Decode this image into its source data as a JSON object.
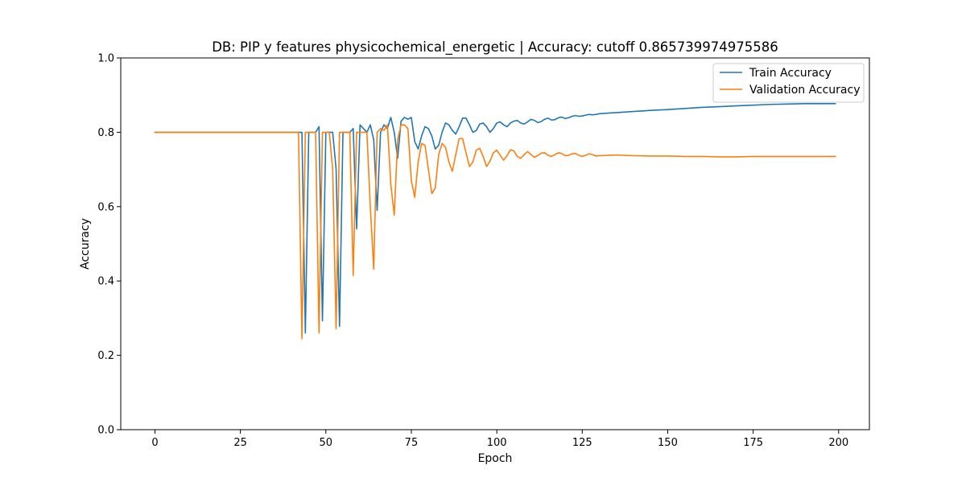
{
  "chart_data": {
    "type": "line",
    "title": "DB: PIP y features physicochemical_energetic | Accuracy: cutoff 0.865739974975586",
    "xlabel": "Epoch",
    "ylabel": "Accuracy",
    "xlim": [
      -10,
      209
    ],
    "ylim": [
      0.0,
      1.0
    ],
    "xticks": [
      0,
      25,
      50,
      75,
      100,
      125,
      150,
      175,
      200
    ],
    "xtick_labels": [
      "0",
      "25",
      "50",
      "75",
      "100",
      "125",
      "150",
      "175",
      "200"
    ],
    "yticks": [
      0.0,
      0.2,
      0.4,
      0.6,
      0.8,
      1.0
    ],
    "ytick_labels": [
      "0.0",
      "0.2",
      "0.4",
      "0.6",
      "0.8",
      "1.0"
    ],
    "grid": false,
    "legend_position": "top-right",
    "series": [
      {
        "name": "Train Accuracy",
        "color": "#1f77b4",
        "x": [
          0,
          5,
          10,
          15,
          20,
          25,
          30,
          35,
          40,
          41,
          42,
          43,
          44,
          45,
          46,
          47,
          48,
          49,
          50,
          51,
          52,
          53,
          54,
          55,
          56,
          57,
          58,
          59,
          60,
          61,
          62,
          63,
          64,
          65,
          66,
          67,
          68,
          69,
          70,
          71,
          72,
          73,
          74,
          75,
          76,
          77,
          78,
          79,
          80,
          81,
          82,
          83,
          84,
          85,
          86,
          87,
          88,
          89,
          90,
          91,
          92,
          93,
          94,
          95,
          96,
          97,
          98,
          99,
          100,
          101,
          102,
          103,
          104,
          105,
          106,
          107,
          108,
          109,
          110,
          111,
          112,
          113,
          114,
          115,
          116,
          117,
          118,
          119,
          120,
          121,
          122,
          123,
          124,
          125,
          126,
          127,
          128,
          129,
          130,
          135,
          140,
          145,
          150,
          155,
          160,
          165,
          170,
          175,
          180,
          185,
          190,
          195,
          199
        ],
        "y": [
          0.8,
          0.8,
          0.8,
          0.8,
          0.8,
          0.8,
          0.8,
          0.8,
          0.8,
          0.8,
          0.8,
          0.8,
          0.26,
          0.8,
          0.8,
          0.8,
          0.815,
          0.293,
          0.8,
          0.8,
          0.8,
          0.7,
          0.278,
          0.8,
          0.8,
          0.8,
          0.81,
          0.54,
          0.82,
          0.81,
          0.8,
          0.82,
          0.78,
          0.59,
          0.8,
          0.82,
          0.81,
          0.84,
          0.8,
          0.73,
          0.83,
          0.84,
          0.835,
          0.84,
          0.775,
          0.755,
          0.79,
          0.815,
          0.81,
          0.79,
          0.755,
          0.765,
          0.8,
          0.825,
          0.82,
          0.805,
          0.795,
          0.815,
          0.838,
          0.838,
          0.82,
          0.8,
          0.805,
          0.822,
          0.825,
          0.815,
          0.8,
          0.81,
          0.825,
          0.828,
          0.82,
          0.815,
          0.825,
          0.83,
          0.832,
          0.825,
          0.822,
          0.828,
          0.835,
          0.832,
          0.826,
          0.829,
          0.835,
          0.838,
          0.833,
          0.834,
          0.839,
          0.841,
          0.837,
          0.839,
          0.843,
          0.845,
          0.843,
          0.844,
          0.846,
          0.848,
          0.847,
          0.848,
          0.85,
          0.853,
          0.856,
          0.859,
          0.861,
          0.864,
          0.867,
          0.869,
          0.871,
          0.873,
          0.875,
          0.876,
          0.877,
          0.877,
          0.877
        ]
      },
      {
        "name": "Validation Accuracy",
        "color": "#ff7f0e",
        "x": [
          0,
          5,
          10,
          15,
          20,
          25,
          30,
          35,
          40,
          41,
          42,
          43,
          44,
          45,
          46,
          47,
          48,
          49,
          50,
          51,
          52,
          53,
          54,
          55,
          56,
          57,
          58,
          59,
          60,
          61,
          62,
          63,
          64,
          65,
          66,
          67,
          68,
          69,
          70,
          71,
          72,
          73,
          74,
          75,
          76,
          77,
          78,
          79,
          80,
          81,
          82,
          83,
          84,
          85,
          86,
          87,
          88,
          89,
          90,
          91,
          92,
          93,
          94,
          95,
          96,
          97,
          98,
          99,
          100,
          101,
          102,
          103,
          104,
          105,
          106,
          107,
          108,
          109,
          110,
          111,
          112,
          113,
          114,
          115,
          116,
          117,
          118,
          119,
          120,
          121,
          122,
          123,
          124,
          125,
          126,
          127,
          128,
          129,
          130,
          135,
          140,
          145,
          150,
          155,
          160,
          165,
          170,
          175,
          180,
          185,
          190,
          195,
          199
        ],
        "y": [
          0.8,
          0.8,
          0.8,
          0.8,
          0.8,
          0.8,
          0.8,
          0.8,
          0.8,
          0.8,
          0.8,
          0.245,
          0.8,
          0.8,
          0.8,
          0.8,
          0.26,
          0.8,
          0.8,
          0.8,
          0.7,
          0.272,
          0.8,
          0.8,
          0.8,
          0.8,
          0.415,
          0.8,
          0.8,
          0.8,
          0.8,
          0.6,
          0.432,
          0.8,
          0.81,
          0.805,
          0.82,
          0.66,
          0.577,
          0.78,
          0.82,
          0.82,
          0.81,
          0.67,
          0.625,
          0.72,
          0.77,
          0.765,
          0.7,
          0.635,
          0.65,
          0.74,
          0.77,
          0.76,
          0.72,
          0.695,
          0.74,
          0.783,
          0.783,
          0.745,
          0.708,
          0.72,
          0.752,
          0.757,
          0.735,
          0.708,
          0.722,
          0.745,
          0.752,
          0.738,
          0.725,
          0.737,
          0.753,
          0.75,
          0.735,
          0.73,
          0.74,
          0.748,
          0.74,
          0.733,
          0.737,
          0.744,
          0.745,
          0.738,
          0.735,
          0.74,
          0.745,
          0.743,
          0.737,
          0.738,
          0.742,
          0.743,
          0.738,
          0.735,
          0.738,
          0.742,
          0.74,
          0.736,
          0.737,
          0.739,
          0.737,
          0.736,
          0.736,
          0.735,
          0.735,
          0.734,
          0.734,
          0.735,
          0.735,
          0.735,
          0.735,
          0.735,
          0.735
        ]
      }
    ]
  }
}
